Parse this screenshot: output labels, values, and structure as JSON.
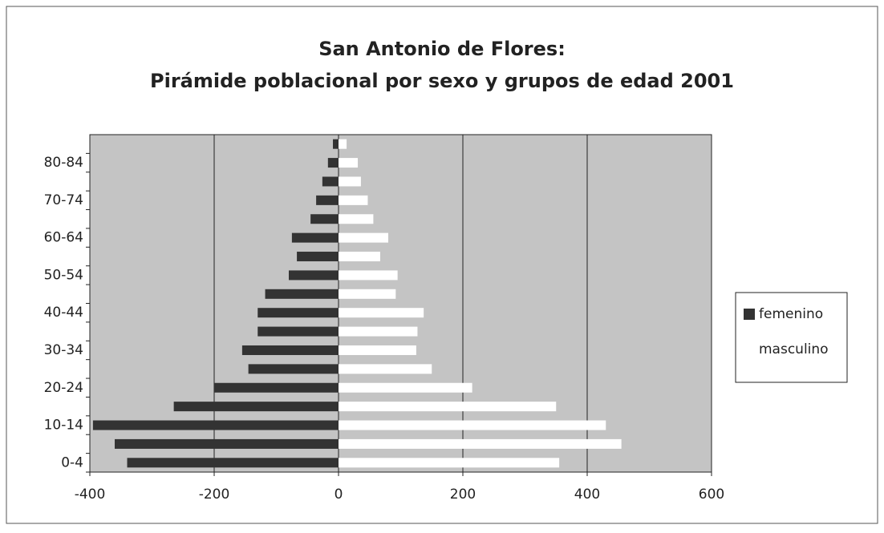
{
  "chart_data": {
    "type": "bar",
    "orientation": "horizontal",
    "stacked": false,
    "title": [
      "San Antonio de Flores:",
      "Pirámide poblacional por sexo y grupos de edad 2001"
    ],
    "categories": [
      "0-4",
      null,
      "10-14",
      null,
      "20-24",
      null,
      "30-34",
      null,
      "40-44",
      null,
      "50-54",
      null,
      "60-64",
      null,
      "70-74",
      null,
      "80-84",
      null
    ],
    "series": [
      {
        "name": "femenino",
        "color": "#333333",
        "values": [
          -340,
          -360,
          -395,
          -265,
          -200,
          -145,
          -155,
          -130,
          -130,
          -118,
          -80,
          -67,
          -75,
          -45,
          -36,
          -26,
          -17,
          -9
        ]
      },
      {
        "name": "masculino",
        "color": "#ffffff",
        "values": [
          355,
          455,
          430,
          350,
          215,
          150,
          125,
          127,
          137,
          92,
          95,
          67,
          80,
          56,
          47,
          36,
          31,
          13
        ]
      }
    ],
    "xlim": [
      -400,
      600
    ],
    "xticks": [
      -400,
      -200,
      0,
      200,
      400,
      600
    ],
    "grid": true,
    "legend": "right"
  }
}
